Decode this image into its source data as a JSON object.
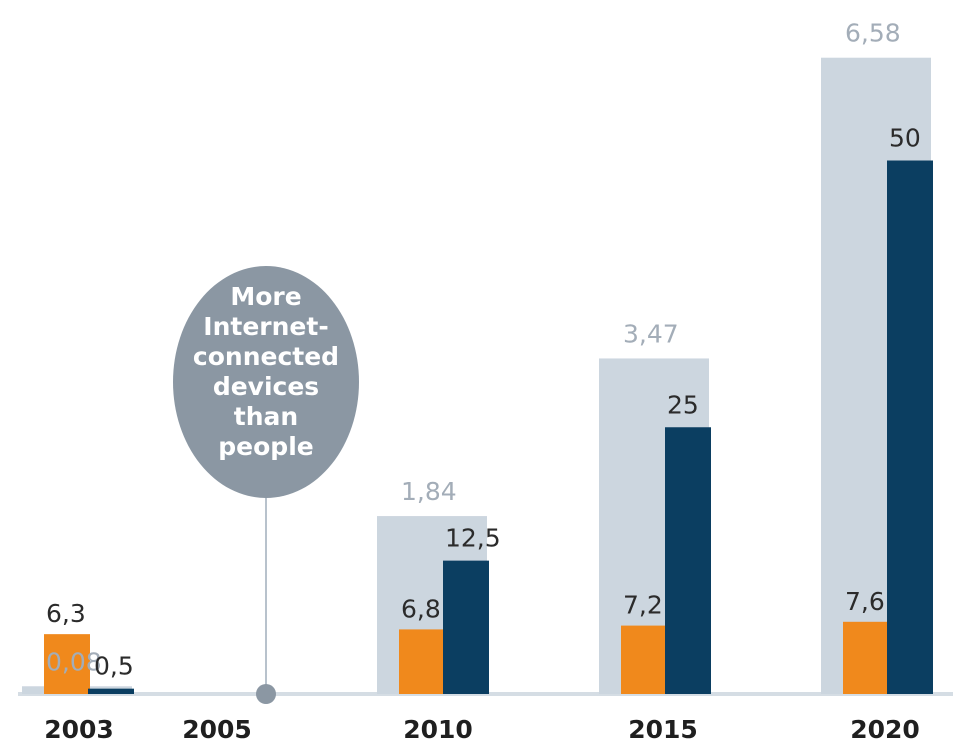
{
  "chart_data": {
    "type": "bar",
    "categories": [
      "2003",
      "2005",
      "2010",
      "2015",
      "2020"
    ],
    "series": [
      {
        "values": [
          0.08,
          null,
          1.84,
          3.47,
          6.58
        ],
        "labels": [
          "0,08",
          "",
          "1,84",
          "3,47",
          "6,58"
        ],
        "color": "#ccd6df"
      },
      {
        "values": [
          6.3,
          null,
          6.8,
          7.2,
          7.6
        ],
        "labels": [
          "6,3",
          "",
          "6,8",
          "7,2",
          "7,6"
        ],
        "color": "#f0891c"
      },
      {
        "values": [
          0.5,
          null,
          12.5,
          25,
          50
        ],
        "labels": [
          "0,5",
          "",
          "12,5",
          "25",
          "50"
        ],
        "color": "#0b3e61"
      }
    ],
    "callout": {
      "category": "2005",
      "lines": [
        "More",
        "Internet-",
        "connected",
        "devices",
        "than",
        "people"
      ],
      "color": "#8b97a3"
    },
    "colors": {
      "baseline": "#d5dde4",
      "stem": "#b8c2cc",
      "axis_text": "#1f1f1f"
    }
  }
}
